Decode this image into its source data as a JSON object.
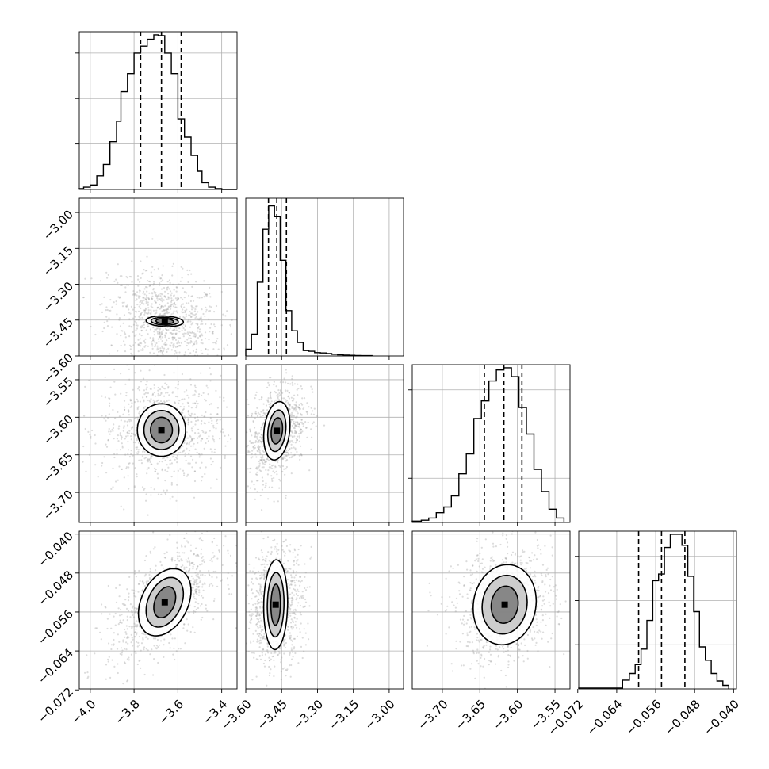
{
  "chart_data": {
    "type": "corner",
    "grid": true,
    "parameters": [
      {
        "id": "p0",
        "range": [
          -4.05,
          -3.33
        ],
        "ticks": [
          -4.0,
          -3.8,
          -3.6,
          -3.4
        ],
        "tick_labels": [
          "−4.0",
          "−3.8",
          "−3.6",
          "−3.4"
        ],
        "quantiles": [
          -3.77,
          -3.675,
          -3.585
        ]
      },
      {
        "id": "p1",
        "range": [
          -3.6,
          -2.94
        ],
        "ticks": [
          -3.6,
          -3.45,
          -3.3,
          -3.15,
          -3.0
        ],
        "tick_labels": [
          "−3.60",
          "−3.45",
          "−3.30",
          "−3.15",
          "−3.00"
        ],
        "quantiles": [
          -3.505,
          -3.47,
          -3.43
        ]
      },
      {
        "id": "p2",
        "range": [
          -3.74,
          -3.53
        ],
        "ticks": [
          -3.7,
          -3.65,
          -3.6,
          -3.55
        ],
        "tick_labels": [
          "−3.70",
          "−3.65",
          "−3.60",
          "−3.55"
        ],
        "quantiles": [
          -3.644,
          -3.618,
          -3.594
        ]
      },
      {
        "id": "p3",
        "range": [
          -0.0718,
          -0.0394
        ],
        "ticks": [
          -0.072,
          -0.064,
          -0.056,
          -0.048,
          -0.04
        ],
        "tick_labels": [
          "−0.072",
          "−0.064",
          "−0.056",
          "−0.048",
          "−0.040"
        ],
        "quantiles": [
          -0.0595,
          -0.0548,
          -0.05
        ]
      }
    ],
    "diagonal_ticks": {
      "p0": [
        100,
        200,
        300
      ],
      "p1": [],
      "p2": [
        100,
        200,
        300
      ],
      "p3": [
        100,
        200,
        300
      ]
    },
    "histograms": [
      {
        "param": "p0",
        "edges": [
          -4.05,
          -4.03,
          -4.0,
          -3.97,
          -3.94,
          -3.91,
          -3.88,
          -3.86,
          -3.83,
          -3.8,
          -3.77,
          -3.74,
          -3.71,
          -3.69,
          -3.66,
          -3.63,
          -3.6,
          -3.57,
          -3.54,
          -3.51,
          -3.49,
          -3.46,
          -3.43,
          -3.4,
          -3.37,
          -3.33
        ],
        "counts": [
          2,
          5,
          10,
          30,
          55,
          105,
          150,
          215,
          255,
          300,
          315,
          330,
          340,
          338,
          300,
          255,
          155,
          115,
          75,
          40,
          15,
          5,
          2,
          0,
          0
        ]
      },
      {
        "param": "p1",
        "edges": [
          -3.6,
          -3.576,
          -3.552,
          -3.528,
          -3.504,
          -3.48,
          -3.456,
          -3.432,
          -3.408,
          -3.384,
          -3.36,
          -3.336,
          -3.312,
          -3.288,
          -3.264,
          -3.24,
          -3.216,
          -3.192,
          -3.168,
          -3.144,
          -3.12,
          -3.096,
          -3.072
        ],
        "counts": [
          40,
          130,
          440,
          755,
          895,
          830,
          570,
          270,
          150,
          80,
          32,
          28,
          20,
          18,
          14,
          10,
          7,
          5,
          4,
          3,
          2,
          2
        ],
        "max": 940
      },
      {
        "param": "p2",
        "edges": [
          -3.74,
          -3.728,
          -3.718,
          -3.708,
          -3.698,
          -3.688,
          -3.678,
          -3.668,
          -3.658,
          -3.648,
          -3.638,
          -3.628,
          -3.618,
          -3.608,
          -3.598,
          -3.588,
          -3.578,
          -3.568,
          -3.558,
          -3.548,
          -3.538
        ],
        "counts": [
          3,
          5,
          10,
          22,
          35,
          60,
          110,
          155,
          235,
          275,
          320,
          345,
          350,
          330,
          260,
          200,
          120,
          70,
          30,
          10
        ]
      },
      {
        "param": "p3",
        "edges": [
          -0.0718,
          -0.0628,
          -0.0614,
          -0.0602,
          -0.059,
          -0.0578,
          -0.0566,
          -0.0554,
          -0.0542,
          -0.053,
          -0.0518,
          -0.0506,
          -0.0494,
          -0.0482,
          -0.047,
          -0.0458,
          -0.0446,
          -0.0434,
          -0.0422,
          -0.041
        ],
        "counts": [
          2,
          20,
          35,
          55,
          90,
          155,
          245,
          260,
          320,
          350,
          350,
          325,
          255,
          175,
          95,
          65,
          35,
          18,
          8
        ]
      }
    ],
    "pairs": [
      {
        "x": "p0",
        "y": "p1",
        "mean": [
          -3.66,
          -3.455
        ],
        "sd": [
          0.085,
          0.07
        ],
        "rho": -0.25,
        "contours": [
          [
            0.085,
            0.022
          ],
          [
            0.062,
            0.016
          ],
          [
            0.04,
            0.011
          ]
        ]
      },
      {
        "x": "p0",
        "y": "p2",
        "mean": [
          -3.675,
          -3.617
        ],
        "sd": [
          0.09,
          0.024
        ],
        "rho": 0.0,
        "contours": [
          [
            0.11,
            0.035
          ],
          [
            0.08,
            0.026
          ],
          [
            0.05,
            0.017
          ]
        ]
      },
      {
        "x": "p1",
        "y": "p2",
        "mean": [
          -3.47,
          -3.618
        ],
        "sd": [
          0.04,
          0.022
        ],
        "rho": 0.35,
        "contours": [
          [
            0.055,
            0.038
          ],
          [
            0.038,
            0.027
          ],
          [
            0.024,
            0.017
          ]
        ]
      },
      {
        "x": "p0",
        "y": "p3",
        "mean": [
          -3.66,
          -0.054
        ],
        "sd": [
          0.085,
          0.004
        ],
        "rho": 0.6,
        "contours": [
          [
            0.12,
            0.0065
          ],
          [
            0.085,
            0.0048
          ],
          [
            0.05,
            0.003
          ]
        ]
      },
      {
        "x": "p1",
        "y": "p3",
        "mean": [
          -3.475,
          -0.0545
        ],
        "sd": [
          0.04,
          0.004
        ],
        "rho": 0.1,
        "contours": [
          [
            0.05,
            0.0092
          ],
          [
            0.035,
            0.0066
          ],
          [
            0.02,
            0.0042
          ]
        ]
      },
      {
        "x": "p2",
        "y": "p3",
        "mean": [
          -3.617,
          -0.0545
        ],
        "sd": [
          0.022,
          0.004
        ],
        "rho": 0.15,
        "contours": [
          [
            0.042,
            0.0082
          ],
          [
            0.03,
            0.006
          ],
          [
            0.018,
            0.0038
          ]
        ]
      }
    ]
  }
}
